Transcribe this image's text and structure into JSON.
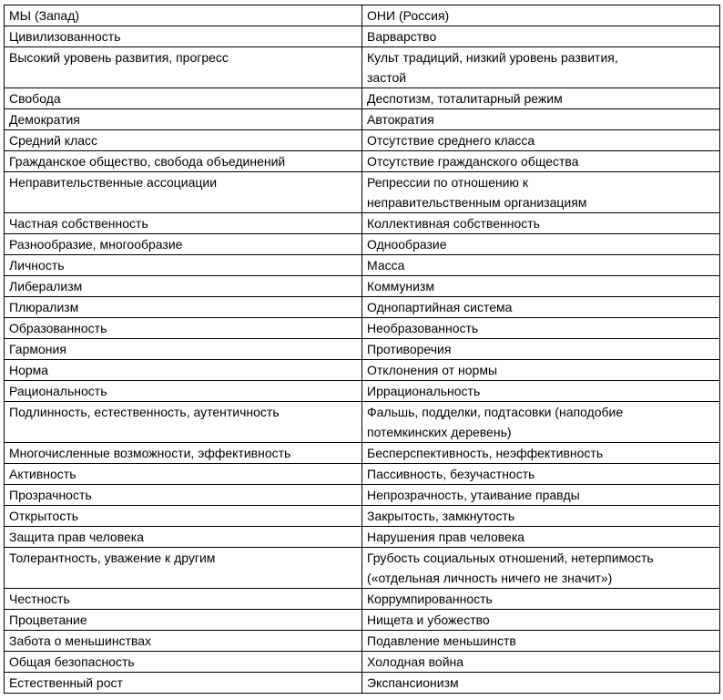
{
  "table": {
    "header": [
      "МЫ (Запад)",
      "ОНИ (Россия)"
    ],
    "rows": [
      [
        "Цивилизованность",
        "Варварство"
      ],
      [
        "Высокий уровень развития, прогресс",
        [
          "Культ традиций, низкий уровень развития,",
          "застой"
        ]
      ],
      [
        "Свобода",
        "Деспотизм, тоталитарный режим"
      ],
      [
        "Демократия",
        "Автократия"
      ],
      [
        "Средний класс",
        "Отсутствие среднего класса"
      ],
      [
        "Гражданское общество, свобода объединений",
        "Отсутствие гражданского общества"
      ],
      [
        "Неправительственные ассоциации",
        [
          "Репрессии по отношению к",
          "неправительственным организациям"
        ]
      ],
      [
        "Частная собственность",
        "Коллективная собственность"
      ],
      [
        "Разнообразие, многообразие",
        "Однообразие"
      ],
      [
        "Личность",
        "Масса"
      ],
      [
        "Либерализм",
        "Коммунизм"
      ],
      [
        "Плюрализм",
        "Однопартийная система"
      ],
      [
        "Образованность",
        "Необразованность"
      ],
      [
        "Гармония",
        "Противоречия"
      ],
      [
        "Норма",
        "Отклонения от нормы"
      ],
      [
        "Рациональность",
        "Иррациональность"
      ],
      [
        "Подлинность, естественность, аутентичность",
        [
          "Фальшь, подделки, подтасовки (наподобие",
          "потемкинских деревень)"
        ]
      ],
      [
        "Многочисленные возможности, эффективность",
        "Бесперспективность, неэффективность"
      ],
      [
        "Активность",
        "Пассивность, безучастность"
      ],
      [
        "Прозрачность",
        "Непрозрачность, утаивание правды"
      ],
      [
        "Открытость",
        "Закрытость, замкнутость"
      ],
      [
        "Защита прав человека",
        "Нарушения прав человека"
      ],
      [
        "Толерантность, уважение к другим",
        [
          "Грубость социальных отношений, нетерпимость",
          "(«отдельная личность ничего не значит»)"
        ]
      ],
      [
        "Честность",
        "Коррумпированность"
      ],
      [
        "Процветание",
        "Нищета и убожество"
      ],
      [
        "Забота о меньшинствах",
        "Подавление меньшинств"
      ],
      [
        "Общая безопасность",
        "Холодная война"
      ],
      [
        "Естественный рост",
        "Экспансионизм"
      ]
    ]
  }
}
